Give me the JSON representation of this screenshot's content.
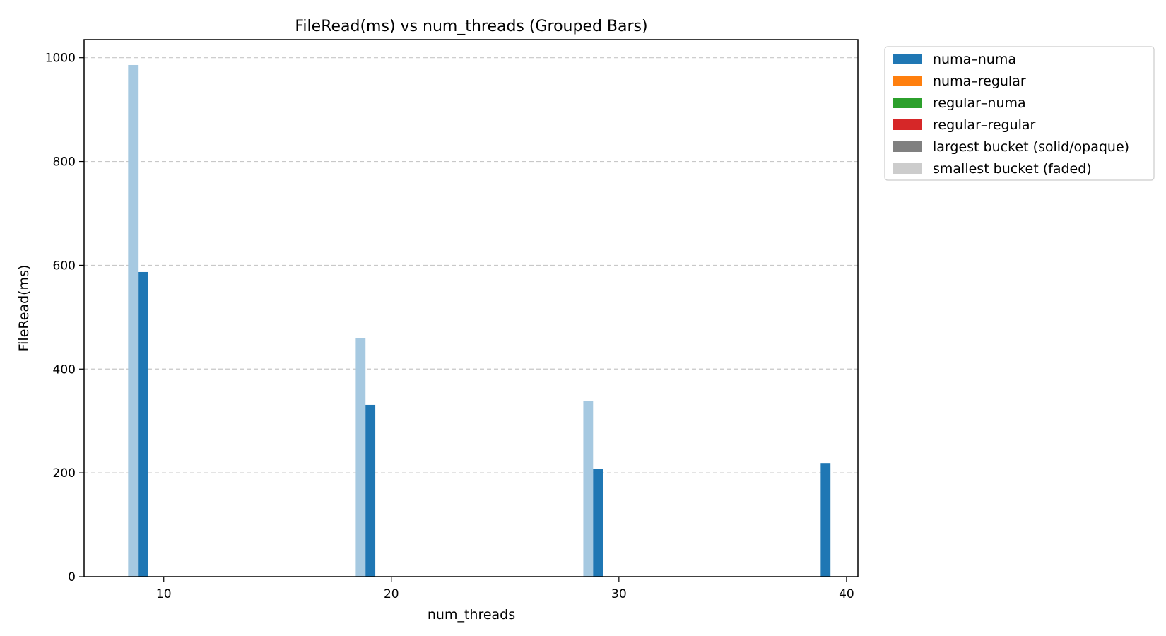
{
  "chart_data": {
    "type": "bar",
    "title": "FileRead(ms) vs num_threads (Grouped Bars)",
    "xlabel": "num_threads",
    "ylabel": "FileRead(ms)",
    "xlim": [
      6.5,
      40.5
    ],
    "ylim": [
      0,
      1035
    ],
    "xticks": [
      10,
      20,
      30,
      40
    ],
    "yticks": [
      0,
      200,
      400,
      600,
      800,
      1000
    ],
    "grid": "y-dashed",
    "legend_position": "outside-right",
    "bars": [
      {
        "series": "numa–numa",
        "bucket": "smallest",
        "x": 10,
        "value": 986
      },
      {
        "series": "numa–numa",
        "bucket": "largest",
        "x": 10,
        "value": 587
      },
      {
        "series": "numa–numa",
        "bucket": "smallest",
        "x": 20,
        "value": 460
      },
      {
        "series": "numa–numa",
        "bucket": "largest",
        "x": 20,
        "value": 331
      },
      {
        "series": "numa–numa",
        "bucket": "smallest",
        "x": 30,
        "value": 338
      },
      {
        "series": "numa–numa",
        "bucket": "largest",
        "x": 30,
        "value": 208
      },
      {
        "series": "numa–numa",
        "bucket": "largest",
        "x": 40,
        "value": 219
      }
    ],
    "legend": [
      {
        "label": "numa–numa",
        "color": "#1f77b4"
      },
      {
        "label": "numa–regular",
        "color": "#ff7f0e"
      },
      {
        "label": "regular–numa",
        "color": "#2ca02c"
      },
      {
        "label": "regular–regular",
        "color": "#d62728"
      },
      {
        "label": "largest bucket (solid/opaque)",
        "color": "#808080"
      },
      {
        "label": "smallest bucket (faded)",
        "color": "#cccccc"
      }
    ],
    "colors": {
      "numa–numa": "#1f77b4",
      "numa–numa_faded": "#a6c9e1"
    }
  }
}
